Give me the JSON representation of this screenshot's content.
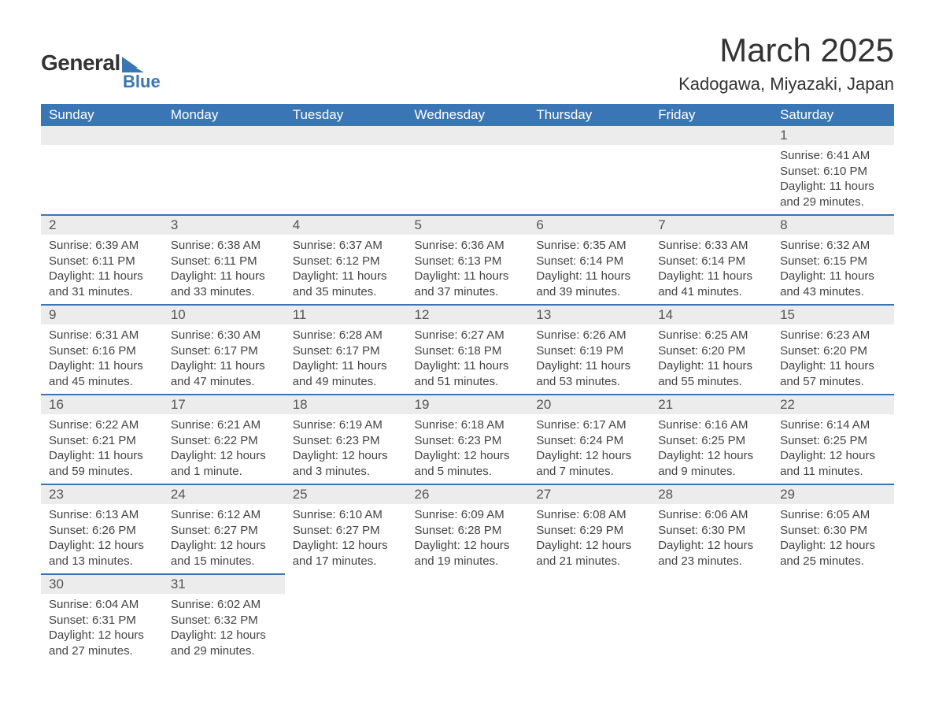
{
  "brand": {
    "name_part1": "General",
    "name_part2": "Blue",
    "text_color": "#333333",
    "accent_color": "#3a76b5"
  },
  "title": "March 2025",
  "location": "Kadogawa, Miyazaki, Japan",
  "colors": {
    "header_bg": "#3a76b5",
    "header_text": "#ffffff",
    "daynum_bg": "#ececec",
    "daynum_text": "#555555",
    "row_divider": "#3a76b5",
    "body_text": "#444444",
    "background": "#ffffff"
  },
  "typography": {
    "title_fontsize": 42,
    "location_fontsize": 22,
    "weekday_fontsize": 17,
    "daynum_fontsize": 17,
    "cell_fontsize": 15,
    "font_family": "Arial"
  },
  "weekdays": [
    "Sunday",
    "Monday",
    "Tuesday",
    "Wednesday",
    "Thursday",
    "Friday",
    "Saturday"
  ],
  "weeks": [
    [
      null,
      null,
      null,
      null,
      null,
      null,
      {
        "num": "1",
        "sunrise": "Sunrise: 6:41 AM",
        "sunset": "Sunset: 6:10 PM",
        "daylight1": "Daylight: 11 hours",
        "daylight2": "and 29 minutes."
      }
    ],
    [
      {
        "num": "2",
        "sunrise": "Sunrise: 6:39 AM",
        "sunset": "Sunset: 6:11 PM",
        "daylight1": "Daylight: 11 hours",
        "daylight2": "and 31 minutes."
      },
      {
        "num": "3",
        "sunrise": "Sunrise: 6:38 AM",
        "sunset": "Sunset: 6:11 PM",
        "daylight1": "Daylight: 11 hours",
        "daylight2": "and 33 minutes."
      },
      {
        "num": "4",
        "sunrise": "Sunrise: 6:37 AM",
        "sunset": "Sunset: 6:12 PM",
        "daylight1": "Daylight: 11 hours",
        "daylight2": "and 35 minutes."
      },
      {
        "num": "5",
        "sunrise": "Sunrise: 6:36 AM",
        "sunset": "Sunset: 6:13 PM",
        "daylight1": "Daylight: 11 hours",
        "daylight2": "and 37 minutes."
      },
      {
        "num": "6",
        "sunrise": "Sunrise: 6:35 AM",
        "sunset": "Sunset: 6:14 PM",
        "daylight1": "Daylight: 11 hours",
        "daylight2": "and 39 minutes."
      },
      {
        "num": "7",
        "sunrise": "Sunrise: 6:33 AM",
        "sunset": "Sunset: 6:14 PM",
        "daylight1": "Daylight: 11 hours",
        "daylight2": "and 41 minutes."
      },
      {
        "num": "8",
        "sunrise": "Sunrise: 6:32 AM",
        "sunset": "Sunset: 6:15 PM",
        "daylight1": "Daylight: 11 hours",
        "daylight2": "and 43 minutes."
      }
    ],
    [
      {
        "num": "9",
        "sunrise": "Sunrise: 6:31 AM",
        "sunset": "Sunset: 6:16 PM",
        "daylight1": "Daylight: 11 hours",
        "daylight2": "and 45 minutes."
      },
      {
        "num": "10",
        "sunrise": "Sunrise: 6:30 AM",
        "sunset": "Sunset: 6:17 PM",
        "daylight1": "Daylight: 11 hours",
        "daylight2": "and 47 minutes."
      },
      {
        "num": "11",
        "sunrise": "Sunrise: 6:28 AM",
        "sunset": "Sunset: 6:17 PM",
        "daylight1": "Daylight: 11 hours",
        "daylight2": "and 49 minutes."
      },
      {
        "num": "12",
        "sunrise": "Sunrise: 6:27 AM",
        "sunset": "Sunset: 6:18 PM",
        "daylight1": "Daylight: 11 hours",
        "daylight2": "and 51 minutes."
      },
      {
        "num": "13",
        "sunrise": "Sunrise: 6:26 AM",
        "sunset": "Sunset: 6:19 PM",
        "daylight1": "Daylight: 11 hours",
        "daylight2": "and 53 minutes."
      },
      {
        "num": "14",
        "sunrise": "Sunrise: 6:25 AM",
        "sunset": "Sunset: 6:20 PM",
        "daylight1": "Daylight: 11 hours",
        "daylight2": "and 55 minutes."
      },
      {
        "num": "15",
        "sunrise": "Sunrise: 6:23 AM",
        "sunset": "Sunset: 6:20 PM",
        "daylight1": "Daylight: 11 hours",
        "daylight2": "and 57 minutes."
      }
    ],
    [
      {
        "num": "16",
        "sunrise": "Sunrise: 6:22 AM",
        "sunset": "Sunset: 6:21 PM",
        "daylight1": "Daylight: 11 hours",
        "daylight2": "and 59 minutes."
      },
      {
        "num": "17",
        "sunrise": "Sunrise: 6:21 AM",
        "sunset": "Sunset: 6:22 PM",
        "daylight1": "Daylight: 12 hours",
        "daylight2": "and 1 minute."
      },
      {
        "num": "18",
        "sunrise": "Sunrise: 6:19 AM",
        "sunset": "Sunset: 6:23 PM",
        "daylight1": "Daylight: 12 hours",
        "daylight2": "and 3 minutes."
      },
      {
        "num": "19",
        "sunrise": "Sunrise: 6:18 AM",
        "sunset": "Sunset: 6:23 PM",
        "daylight1": "Daylight: 12 hours",
        "daylight2": "and 5 minutes."
      },
      {
        "num": "20",
        "sunrise": "Sunrise: 6:17 AM",
        "sunset": "Sunset: 6:24 PM",
        "daylight1": "Daylight: 12 hours",
        "daylight2": "and 7 minutes."
      },
      {
        "num": "21",
        "sunrise": "Sunrise: 6:16 AM",
        "sunset": "Sunset: 6:25 PM",
        "daylight1": "Daylight: 12 hours",
        "daylight2": "and 9 minutes."
      },
      {
        "num": "22",
        "sunrise": "Sunrise: 6:14 AM",
        "sunset": "Sunset: 6:25 PM",
        "daylight1": "Daylight: 12 hours",
        "daylight2": "and 11 minutes."
      }
    ],
    [
      {
        "num": "23",
        "sunrise": "Sunrise: 6:13 AM",
        "sunset": "Sunset: 6:26 PM",
        "daylight1": "Daylight: 12 hours",
        "daylight2": "and 13 minutes."
      },
      {
        "num": "24",
        "sunrise": "Sunrise: 6:12 AM",
        "sunset": "Sunset: 6:27 PM",
        "daylight1": "Daylight: 12 hours",
        "daylight2": "and 15 minutes."
      },
      {
        "num": "25",
        "sunrise": "Sunrise: 6:10 AM",
        "sunset": "Sunset: 6:27 PM",
        "daylight1": "Daylight: 12 hours",
        "daylight2": "and 17 minutes."
      },
      {
        "num": "26",
        "sunrise": "Sunrise: 6:09 AM",
        "sunset": "Sunset: 6:28 PM",
        "daylight1": "Daylight: 12 hours",
        "daylight2": "and 19 minutes."
      },
      {
        "num": "27",
        "sunrise": "Sunrise: 6:08 AM",
        "sunset": "Sunset: 6:29 PM",
        "daylight1": "Daylight: 12 hours",
        "daylight2": "and 21 minutes."
      },
      {
        "num": "28",
        "sunrise": "Sunrise: 6:06 AM",
        "sunset": "Sunset: 6:30 PM",
        "daylight1": "Daylight: 12 hours",
        "daylight2": "and 23 minutes."
      },
      {
        "num": "29",
        "sunrise": "Sunrise: 6:05 AM",
        "sunset": "Sunset: 6:30 PM",
        "daylight1": "Daylight: 12 hours",
        "daylight2": "and 25 minutes."
      }
    ],
    [
      {
        "num": "30",
        "sunrise": "Sunrise: 6:04 AM",
        "sunset": "Sunset: 6:31 PM",
        "daylight1": "Daylight: 12 hours",
        "daylight2": "and 27 minutes."
      },
      {
        "num": "31",
        "sunrise": "Sunrise: 6:02 AM",
        "sunset": "Sunset: 6:32 PM",
        "daylight1": "Daylight: 12 hours",
        "daylight2": "and 29 minutes."
      },
      null,
      null,
      null,
      null,
      null
    ]
  ]
}
